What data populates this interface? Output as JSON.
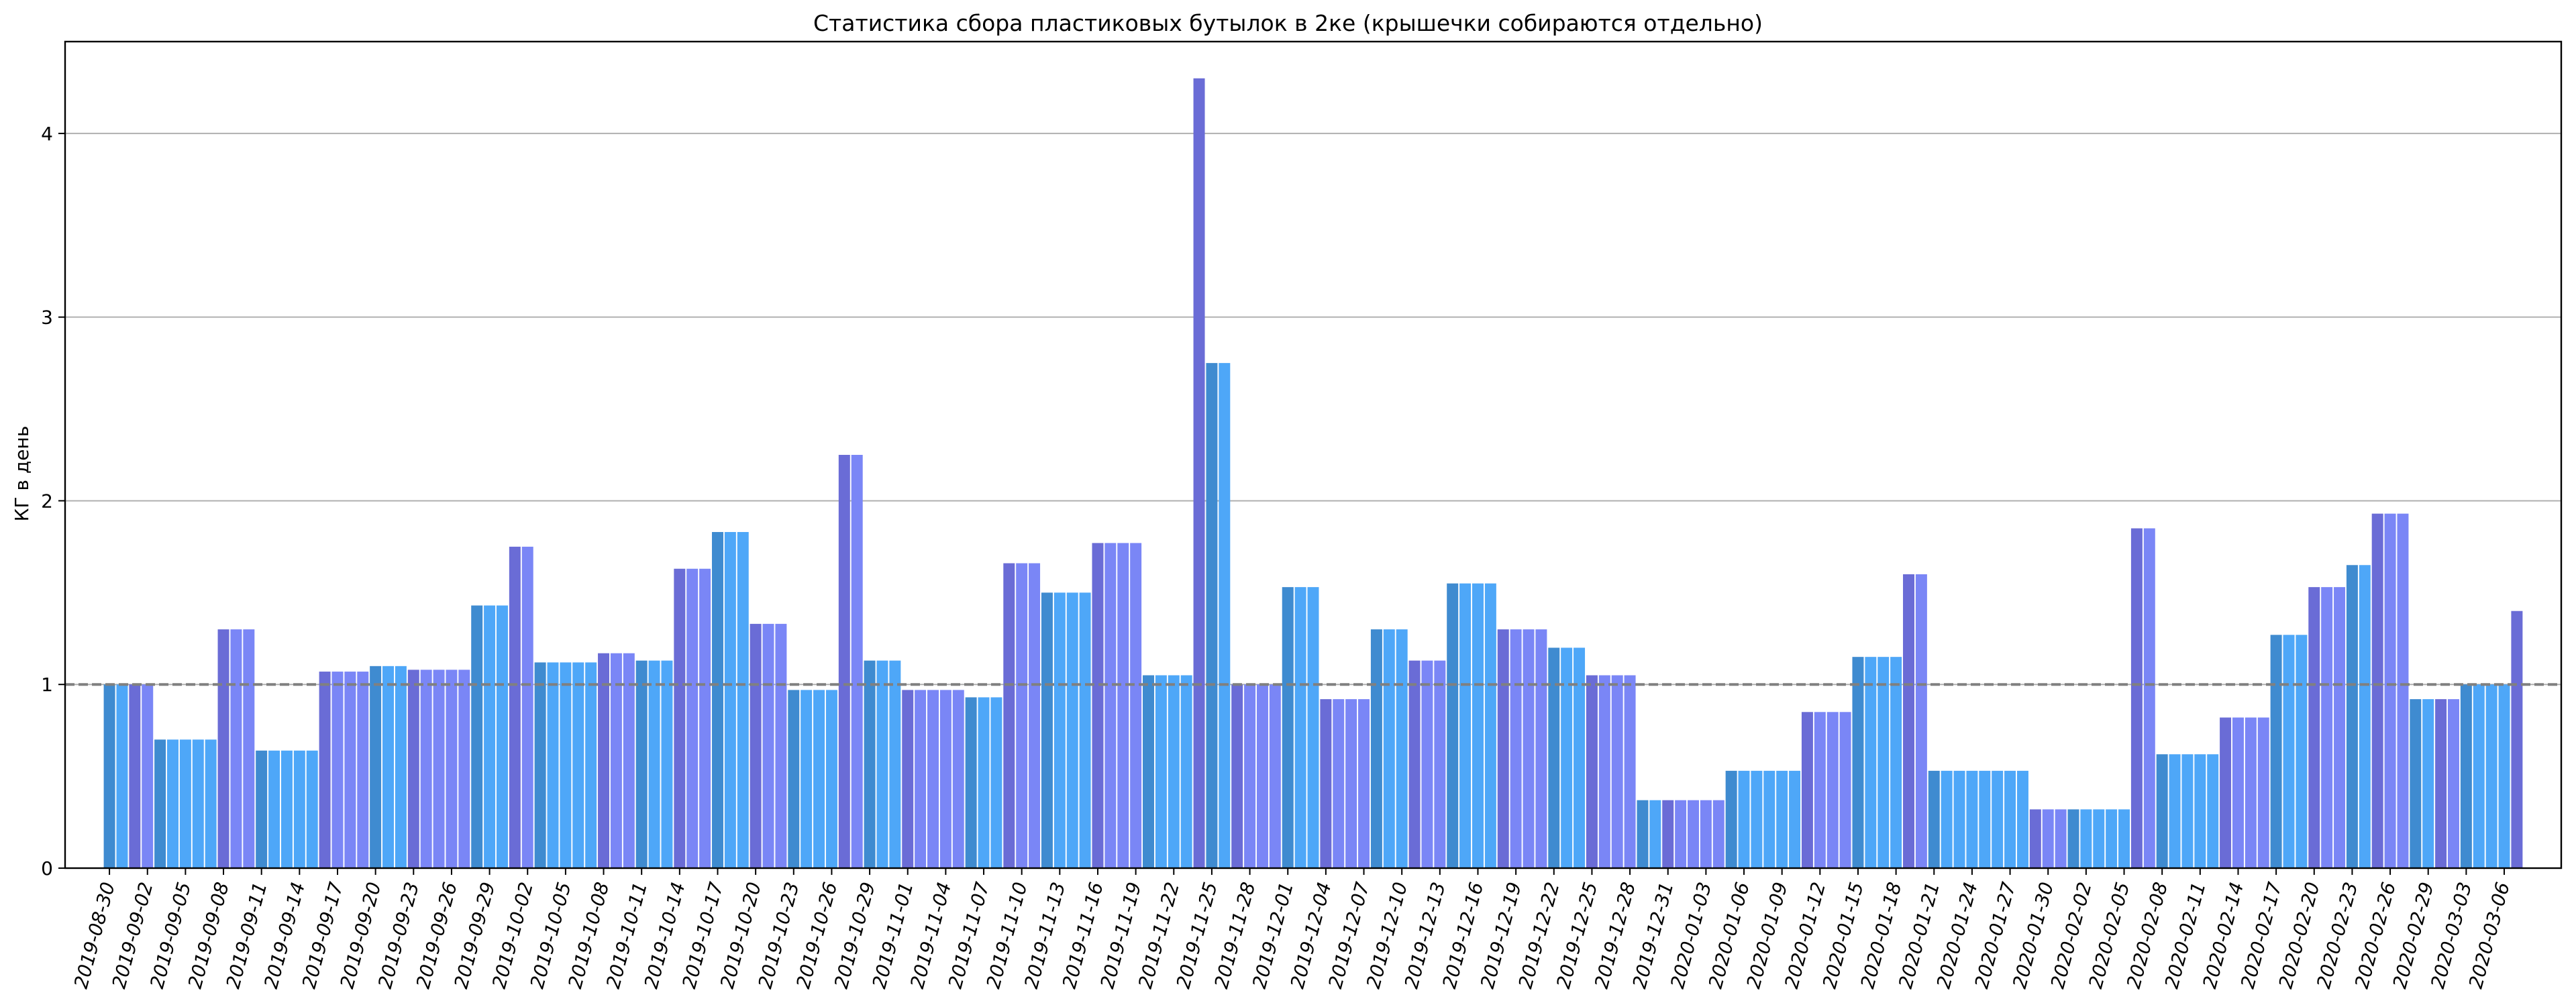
{
  "chart_data": {
    "type": "bar",
    "title": "Статистика сбора пластиковых бутылок в 2ке (крышечки собираются отдельно)",
    "ylabel": "КГ в день",
    "xlabel": "",
    "ylim": [
      0,
      4.5
    ],
    "yticks": [
      0,
      1,
      2,
      3,
      4
    ],
    "reference_line": 1,
    "grid": "horizontal",
    "start_date": "2019-08-30",
    "xtick_labels": [
      "2019-08-30",
      "2019-09-02",
      "2019-09-05",
      "2019-09-08",
      "2019-09-11",
      "2019-09-14",
      "2019-09-17",
      "2019-09-20",
      "2019-09-23",
      "2019-09-26",
      "2019-09-29",
      "2019-10-02",
      "2019-10-05",
      "2019-10-08",
      "2019-10-11",
      "2019-10-14",
      "2019-10-17",
      "2019-10-20",
      "2019-10-23",
      "2019-10-26",
      "2019-10-29",
      "2019-11-01",
      "2019-11-04",
      "2019-11-07",
      "2019-11-10",
      "2019-11-13",
      "2019-11-16",
      "2019-11-19",
      "2019-11-22",
      "2019-11-25",
      "2019-11-28",
      "2019-12-01",
      "2019-12-04",
      "2019-12-07",
      "2019-12-10",
      "2019-12-13",
      "2019-12-16",
      "2019-12-19",
      "2019-12-22",
      "2019-12-25",
      "2019-12-28",
      "2019-12-31",
      "2020-01-03",
      "2020-01-06",
      "2020-01-09",
      "2020-01-12",
      "2020-01-15",
      "2020-01-18",
      "2020-01-21",
      "2020-01-24",
      "2020-01-27",
      "2020-01-30",
      "2020-02-02",
      "2020-02-05",
      "2020-02-08",
      "2020-02-11",
      "2020-02-14",
      "2020-02-17",
      "2020-02-20",
      "2020-02-23",
      "2020-02-26",
      "2020-02-29",
      "2020-03-03",
      "2020-03-06"
    ],
    "groups": [
      {
        "start": "2019-08-30",
        "days": 2,
        "value": 1.0
      },
      {
        "start": "2019-09-01",
        "days": 2,
        "value": 1.0
      },
      {
        "start": "2019-09-03",
        "days": 5,
        "value": 0.7
      },
      {
        "start": "2019-09-08",
        "days": 3,
        "value": 1.3
      },
      {
        "start": "2019-09-11",
        "days": 5,
        "value": 0.64
      },
      {
        "start": "2019-09-16",
        "days": 4,
        "value": 1.07
      },
      {
        "start": "2019-09-20",
        "days": 3,
        "value": 1.1
      },
      {
        "start": "2019-09-23",
        "days": 5,
        "value": 1.08
      },
      {
        "start": "2019-09-28",
        "days": 3,
        "value": 1.43
      },
      {
        "start": "2019-10-01",
        "days": 2,
        "value": 1.75
      },
      {
        "start": "2019-10-03",
        "days": 5,
        "value": 1.12
      },
      {
        "start": "2019-10-08",
        "days": 3,
        "value": 1.17
      },
      {
        "start": "2019-10-11",
        "days": 3,
        "value": 1.13
      },
      {
        "start": "2019-10-14",
        "days": 3,
        "value": 1.63
      },
      {
        "start": "2019-10-17",
        "days": 3,
        "value": 1.83
      },
      {
        "start": "2019-10-20",
        "days": 3,
        "value": 1.33
      },
      {
        "start": "2019-10-23",
        "days": 4,
        "value": 0.97
      },
      {
        "start": "2019-10-27",
        "days": 2,
        "value": 2.25
      },
      {
        "start": "2019-10-29",
        "days": 3,
        "value": 1.13
      },
      {
        "start": "2019-11-01",
        "days": 5,
        "value": 0.97
      },
      {
        "start": "2019-11-06",
        "days": 3,
        "value": 0.93
      },
      {
        "start": "2019-11-09",
        "days": 3,
        "value": 1.66
      },
      {
        "start": "2019-11-12",
        "days": 4,
        "value": 1.5
      },
      {
        "start": "2019-11-16",
        "days": 4,
        "value": 1.77
      },
      {
        "start": "2019-11-20",
        "days": 4,
        "value": 1.05
      },
      {
        "start": "2019-11-24",
        "days": 1,
        "value": 4.3
      },
      {
        "start": "2019-11-25",
        "days": 2,
        "value": 2.75
      },
      {
        "start": "2019-11-27",
        "days": 4,
        "value": 1.0
      },
      {
        "start": "2019-12-01",
        "days": 3,
        "value": 1.53
      },
      {
        "start": "2019-12-04",
        "days": 4,
        "value": 0.92
      },
      {
        "start": "2019-12-08",
        "days": 3,
        "value": 1.3
      },
      {
        "start": "2019-12-11",
        "days": 3,
        "value": 1.13
      },
      {
        "start": "2019-12-14",
        "days": 4,
        "value": 1.55
      },
      {
        "start": "2019-12-18",
        "days": 4,
        "value": 1.3
      },
      {
        "start": "2019-12-22",
        "days": 3,
        "value": 1.2
      },
      {
        "start": "2019-12-25",
        "days": 4,
        "value": 1.05
      },
      {
        "start": "2019-12-29",
        "days": 2,
        "value": 0.37
      },
      {
        "start": "2019-12-31",
        "days": 5,
        "value": 0.37
      },
      {
        "start": "2020-01-05",
        "days": 6,
        "value": 0.53
      },
      {
        "start": "2020-01-11",
        "days": 4,
        "value": 0.85
      },
      {
        "start": "2020-01-15",
        "days": 4,
        "value": 1.15
      },
      {
        "start": "2020-01-19",
        "days": 2,
        "value": 1.6
      },
      {
        "start": "2020-01-21",
        "days": 8,
        "value": 0.53
      },
      {
        "start": "2020-01-29",
        "days": 3,
        "value": 0.32
      },
      {
        "start": "2020-02-01",
        "days": 5,
        "value": 0.32
      },
      {
        "start": "2020-02-06",
        "days": 2,
        "value": 1.85
      },
      {
        "start": "2020-02-08",
        "days": 5,
        "value": 0.62
      },
      {
        "start": "2020-02-13",
        "days": 4,
        "value": 0.82
      },
      {
        "start": "2020-02-17",
        "days": 3,
        "value": 1.27
      },
      {
        "start": "2020-02-20",
        "days": 3,
        "value": 1.53
      },
      {
        "start": "2020-02-23",
        "days": 2,
        "value": 1.65
      },
      {
        "start": "2020-02-25",
        "days": 3,
        "value": 1.93
      },
      {
        "start": "2020-02-28",
        "days": 2,
        "value": 0.92
      },
      {
        "start": "2020-03-01",
        "days": 2,
        "value": 0.92
      },
      {
        "start": "2020-03-03",
        "days": 4,
        "value": 1.0
      },
      {
        "start": "2020-03-07",
        "days": 1,
        "value": 1.4
      }
    ],
    "colors": {
      "sky": "#4ea7f8",
      "sky_first": "#3f8bd0",
      "periwinkle": "#7a86f6",
      "periwinkle_first": "#6a6cd6",
      "reference": "#808080",
      "grid": "#b0b0b0"
    }
  }
}
